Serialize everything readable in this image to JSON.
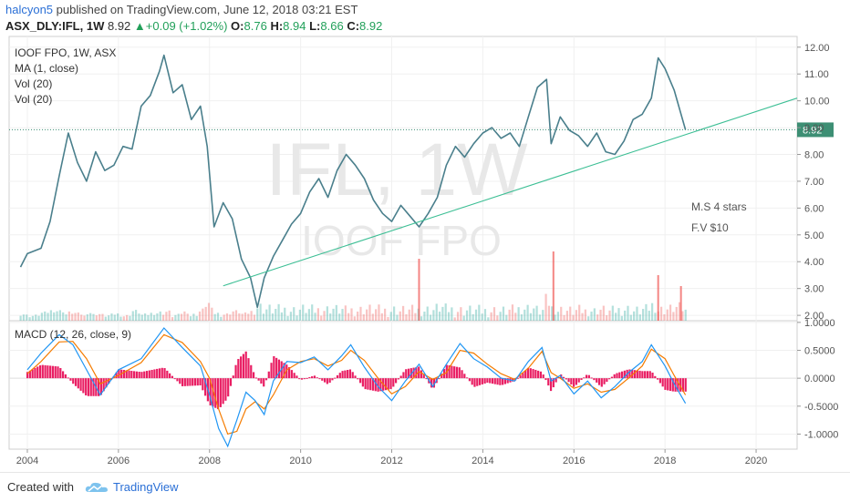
{
  "header": {
    "username": "halcyon5",
    "published_text": " published on TradingView.com, June 12, 2018 03:21 EST",
    "symbol": "ASX_DLY:IFL, 1W",
    "last": "8.92",
    "change": "+0.09 (+1.02%)",
    "o_label": "O:",
    "o_value": "8.76",
    "h_label": "H:",
    "h_value": "8.94",
    "l_label": "L:",
    "l_value": "8.66",
    "c_label": "C:",
    "c_value": "8.92"
  },
  "legend": {
    "title": "IOOF FPO, 1W, ASX",
    "ma": "MA (1, close)",
    "vol1": "Vol (20)",
    "vol2": "Vol (20)"
  },
  "watermark": {
    "line1": "IFL, 1W",
    "line2": "IOOF FPO"
  },
  "annotations": {
    "rating": "M.S  4 stars",
    "fair_value": "F.V $10"
  },
  "macd_label": "MACD (12, 26, close, 9)",
  "footer": {
    "created_with": "Created with",
    "brand": "TradingView"
  },
  "colors": {
    "up": "#26a69a",
    "down": "#ef5350",
    "line": "#4a7f8c",
    "trend": "#3dbf95",
    "macd": "#2196f3",
    "signal": "#f57c00",
    "hist": "#e91e63",
    "last_badge": "#3d8f74"
  },
  "chart_data": [
    {
      "type": "line",
      "title": "IOOF FPO, 1W, ASX",
      "y_ticks": [
        "12.00",
        "11.00",
        "10.00",
        "9.00",
        "8.00",
        "7.00",
        "6.00",
        "5.00",
        "4.00",
        "3.00",
        "2.00"
      ],
      "ylim": [
        1.8,
        12.4
      ],
      "x_ticks": [
        "2004",
        "2006",
        "2008",
        "2010",
        "2012",
        "2014",
        "2016",
        "2018",
        "2020"
      ],
      "xlim": [
        2003.6,
        2020.9
      ],
      "last_price_label": "8.92",
      "series": [
        {
          "x": [
            2003.85,
            2004.0,
            2004.3,
            2004.5,
            2004.7,
            2004.9,
            2005.1,
            2005.3,
            2005.5,
            2005.7,
            2005.9,
            2006.1,
            2006.3,
            2006.5,
            2006.7,
            2006.9,
            2007.0,
            2007.2,
            2007.4,
            2007.6,
            2007.8,
            2007.95,
            2008.1,
            2008.3,
            2008.5,
            2008.7,
            2008.9,
            2009.05,
            2009.2,
            2009.4,
            2009.6,
            2009.8,
            2010.0,
            2010.2,
            2010.4,
            2010.6,
            2010.8,
            2011.0,
            2011.2,
            2011.4,
            2011.6,
            2011.8,
            2012.0,
            2012.2,
            2012.4,
            2012.6,
            2012.8,
            2013.0,
            2013.2,
            2013.4,
            2013.6,
            2013.8,
            2014.0,
            2014.2,
            2014.4,
            2014.6,
            2014.8,
            2015.0,
            2015.2,
            2015.4,
            2015.5,
            2015.7,
            2015.9,
            2016.1,
            2016.3,
            2016.5,
            2016.7,
            2016.9,
            2017.1,
            2017.3,
            2017.5,
            2017.7,
            2017.85,
            2018.0,
            2018.2,
            2018.45
          ],
          "values": [
            3.8,
            4.3,
            4.5,
            5.5,
            7.2,
            8.8,
            7.7,
            7.0,
            8.1,
            7.4,
            7.6,
            8.3,
            8.2,
            9.8,
            10.2,
            11.1,
            11.7,
            10.3,
            10.6,
            9.3,
            9.8,
            8.3,
            5.3,
            6.2,
            5.6,
            4.1,
            3.4,
            2.3,
            3.4,
            4.2,
            4.8,
            5.4,
            5.8,
            6.6,
            7.1,
            6.4,
            7.4,
            8.0,
            7.6,
            7.1,
            6.3,
            5.8,
            5.5,
            6.1,
            5.7,
            5.3,
            5.8,
            6.4,
            7.6,
            8.3,
            7.9,
            8.4,
            8.8,
            9.0,
            8.6,
            8.8,
            8.3,
            9.4,
            10.5,
            10.8,
            8.4,
            9.4,
            8.9,
            8.7,
            8.3,
            8.8,
            8.1,
            8.0,
            8.5,
            9.3,
            9.5,
            10.1,
            11.6,
            11.2,
            10.4,
            8.92
          ]
        }
      ]
    },
    {
      "type": "line",
      "title": "MACD (12, 26, close, 9)",
      "y_ticks": [
        "1.0000",
        "0.5000",
        "0.0000",
        "-0.5000",
        "-1.0000"
      ],
      "ylim": [
        -1.27,
        1.03
      ],
      "series": [
        {
          "name": "MACD",
          "x": [
            2004.0,
            2004.3,
            2004.7,
            2005.0,
            2005.3,
            2005.6,
            2006.0,
            2006.5,
            2007.0,
            2007.4,
            2007.8,
            2008.0,
            2008.2,
            2008.4,
            2008.6,
            2008.8,
            2009.0,
            2009.2,
            2009.4,
            2009.7,
            2010.0,
            2010.3,
            2010.6,
            2010.9,
            2011.1,
            2011.4,
            2011.7,
            2012.0,
            2012.3,
            2012.6,
            2012.9,
            2013.2,
            2013.5,
            2013.8,
            2014.1,
            2014.4,
            2014.7,
            2015.0,
            2015.3,
            2015.5,
            2015.7,
            2016.0,
            2016.3,
            2016.6,
            2016.9,
            2017.2,
            2017.5,
            2017.7,
            2018.0,
            2018.2,
            2018.45
          ],
          "values": [
            0.15,
            0.45,
            0.78,
            0.6,
            0.15,
            -0.3,
            0.15,
            0.35,
            0.9,
            0.55,
            0.22,
            -0.3,
            -0.9,
            -1.22,
            -0.75,
            -0.25,
            -0.4,
            -0.65,
            -0.05,
            0.3,
            0.28,
            0.38,
            0.15,
            0.4,
            0.6,
            0.2,
            -0.15,
            -0.4,
            -0.05,
            0.25,
            -0.15,
            0.25,
            0.62,
            0.35,
            0.2,
            0.0,
            -0.05,
            0.3,
            0.55,
            -0.05,
            0.05,
            -0.28,
            -0.05,
            -0.35,
            -0.15,
            0.1,
            0.3,
            0.6,
            0.22,
            -0.1,
            -0.45
          ]
        },
        {
          "name": "Signal",
          "x": [
            2004.0,
            2004.3,
            2004.7,
            2005.0,
            2005.3,
            2005.6,
            2006.0,
            2006.5,
            2007.0,
            2007.4,
            2007.8,
            2008.0,
            2008.2,
            2008.4,
            2008.6,
            2008.8,
            2009.0,
            2009.2,
            2009.4,
            2009.7,
            2010.0,
            2010.3,
            2010.6,
            2010.9,
            2011.1,
            2011.4,
            2011.7,
            2012.0,
            2012.3,
            2012.6,
            2012.9,
            2013.2,
            2013.5,
            2013.8,
            2014.1,
            2014.4,
            2014.7,
            2015.0,
            2015.3,
            2015.5,
            2015.7,
            2016.0,
            2016.3,
            2016.6,
            2016.9,
            2017.2,
            2017.5,
            2017.7,
            2018.0,
            2018.2,
            2018.45
          ],
          "values": [
            0.08,
            0.3,
            0.65,
            0.66,
            0.35,
            -0.1,
            0.05,
            0.28,
            0.78,
            0.64,
            0.3,
            0.0,
            -0.55,
            -1.0,
            -0.95,
            -0.55,
            -0.42,
            -0.55,
            -0.3,
            0.15,
            0.3,
            0.35,
            0.22,
            0.32,
            0.5,
            0.32,
            0.0,
            -0.28,
            -0.15,
            0.12,
            -0.02,
            0.1,
            0.5,
            0.45,
            0.25,
            0.08,
            -0.02,
            0.18,
            0.48,
            0.1,
            0.0,
            -0.18,
            -0.1,
            -0.25,
            -0.2,
            0.0,
            0.22,
            0.52,
            0.35,
            0.05,
            -0.3
          ]
        }
      ]
    }
  ]
}
